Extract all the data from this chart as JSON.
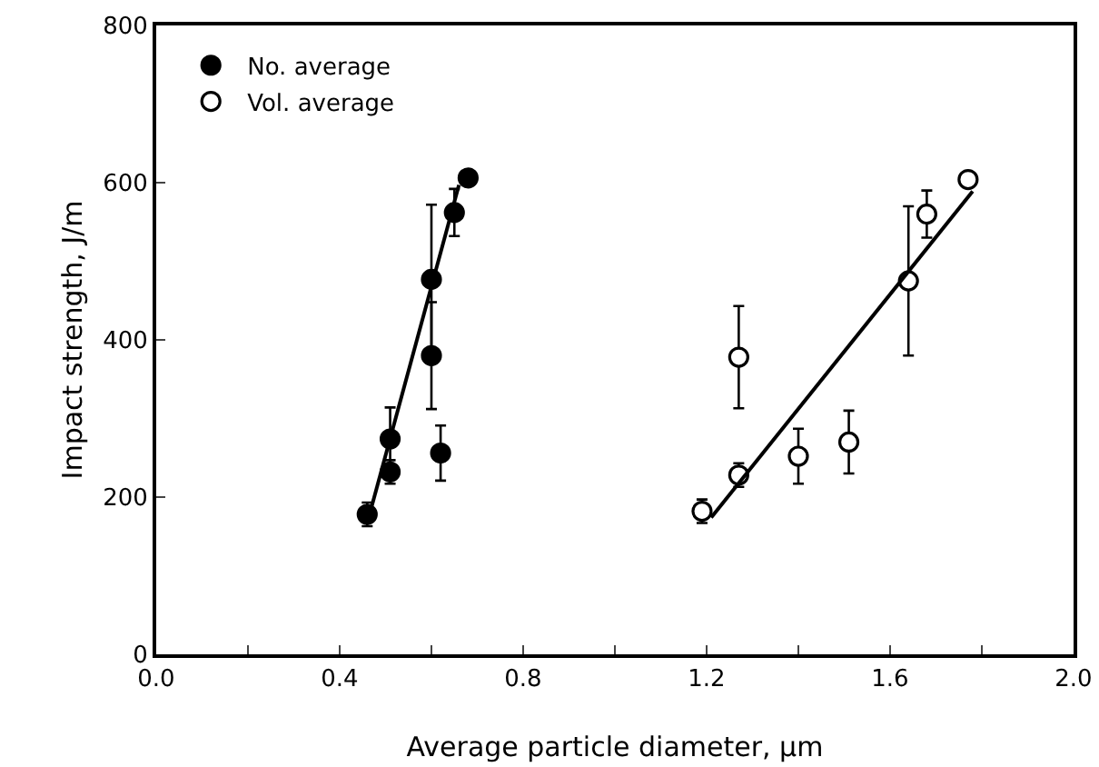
{
  "chart_data": {
    "type": "scatter",
    "xlabel": "Average particle diameter, μm",
    "ylabel": "Impact strength, J/m",
    "xlim": [
      0,
      2
    ],
    "ylim": [
      0,
      800
    ],
    "xticks": [
      {
        "value": 0,
        "label": "0.0"
      },
      {
        "value": 0.2,
        "label": null
      },
      {
        "value": 0.4,
        "label": "0.4"
      },
      {
        "value": 0.6,
        "label": null
      },
      {
        "value": 0.8,
        "label": "0.8"
      },
      {
        "value": 1.0,
        "label": null
      },
      {
        "value": 1.2,
        "label": "1.2"
      },
      {
        "value": 1.4,
        "label": null
      },
      {
        "value": 1.6,
        "label": "1.6"
      },
      {
        "value": 1.8,
        "label": null
      },
      {
        "value": 2,
        "label": "2.0"
      }
    ],
    "yticks": [
      0,
      200,
      400,
      600,
      800
    ],
    "grid": false,
    "legend": "top left",
    "series": [
      {
        "name": "No. average",
        "color": "#000000",
        "marker": "circle",
        "x": [
          0.46,
          0.51,
          0.51,
          0.6,
          0.6,
          0.62,
          0.65,
          0.68
        ],
        "values": [
          178,
          232,
          274,
          380,
          477,
          256,
          562,
          606
        ],
        "errors": [
          15,
          15,
          40,
          68,
          95,
          35,
          30,
          null
        ]
      },
      {
        "name": "Vol. average",
        "color": "#ffffff",
        "marker": "circle",
        "x": [
          1.19,
          1.27,
          1.27,
          1.4,
          1.51,
          1.64,
          1.68,
          1.77
        ],
        "values": [
          182,
          378,
          228,
          252,
          270,
          475,
          560,
          604
        ],
        "errors": [
          15,
          65,
          15,
          35,
          40,
          95,
          30,
          null
        ]
      },
      {
        "type": "line",
        "color": "#000000",
        "line_style": "solid",
        "marker": "none",
        "x": [
          0.46,
          0.66
        ],
        "values": [
          167,
          597
        ]
      },
      {
        "type": "line",
        "color": "#000000",
        "line_style": "solid",
        "marker": "none",
        "x": [
          1.21,
          1.78
        ],
        "values": [
          174,
          589
        ]
      }
    ]
  }
}
